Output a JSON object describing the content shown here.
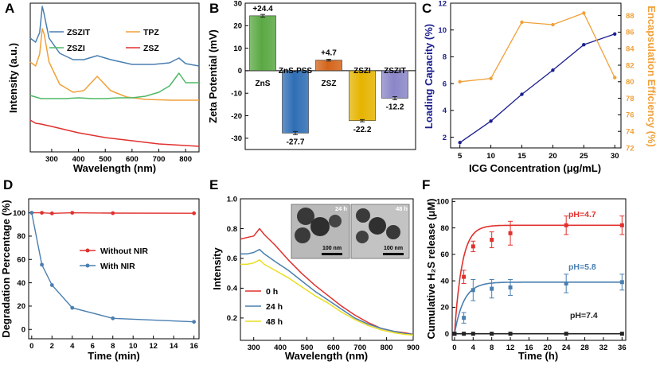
{
  "colors": {
    "blue": "#4a7fb0",
    "orange": "#f0a13a",
    "green": "#4fb866",
    "red": "#e0312e",
    "black": "#222222",
    "yellow": "#eadf22",
    "navy": "#1b1f8f"
  },
  "panels": {
    "A": {
      "letter": "A"
    },
    "B": {
      "letter": "B"
    },
    "C": {
      "letter": "C"
    },
    "D": {
      "letter": "D"
    },
    "E": {
      "letter": "E"
    },
    "F": {
      "letter": "F"
    }
  },
  "chart_data": [
    {
      "id": "A",
      "type": "line",
      "title": "",
      "xlabel": "Wavelength (nm)",
      "ylabel": "Intensity (a.u.)",
      "xlim": [
        220,
        850
      ],
      "xticks": [
        300,
        400,
        500,
        600,
        700,
        800
      ],
      "legend": [
        "ZSZIT",
        "TPZ",
        "ZSZI",
        "ZSZ"
      ],
      "series": [
        {
          "name": "ZSZIT",
          "color": "blue",
          "offset": 0.83,
          "points": [
            [
              220,
              0.55
            ],
            [
              240,
              0.5
            ],
            [
              255,
              0.62
            ],
            [
              265,
              0.95
            ],
            [
              272,
              0.85
            ],
            [
              290,
              0.55
            ],
            [
              330,
              0.36
            ],
            [
              380,
              0.28
            ],
            [
              420,
              0.28
            ],
            [
              470,
              0.33
            ],
            [
              520,
              0.28
            ],
            [
              600,
              0.22
            ],
            [
              680,
              0.22
            ],
            [
              740,
              0.24
            ],
            [
              775,
              0.3
            ],
            [
              800,
              0.23
            ],
            [
              850,
              0.2
            ]
          ]
        },
        {
          "name": "TPZ",
          "color": "orange",
          "offset": 0.58,
          "points": [
            [
              220,
              0.5
            ],
            [
              240,
              0.45
            ],
            [
              255,
              0.6
            ],
            [
              265,
              0.92
            ],
            [
              272,
              0.85
            ],
            [
              290,
              0.5
            ],
            [
              330,
              0.22
            ],
            [
              380,
              0.12
            ],
            [
              420,
              0.14
            ],
            [
              470,
              0.32
            ],
            [
              520,
              0.14
            ],
            [
              580,
              0.06
            ],
            [
              650,
              0.03
            ],
            [
              750,
              0.02
            ],
            [
              850,
              0.02
            ]
          ]
        },
        {
          "name": "ZSZI",
          "color": "green",
          "offset": 0.32,
          "points": [
            [
              220,
              0.34
            ],
            [
              260,
              0.3
            ],
            [
              300,
              0.3
            ],
            [
              350,
              0.3
            ],
            [
              400,
              0.31
            ],
            [
              450,
              0.3
            ],
            [
              500,
              0.3
            ],
            [
              550,
              0.31
            ],
            [
              600,
              0.31
            ],
            [
              650,
              0.33
            ],
            [
              700,
              0.38
            ],
            [
              740,
              0.46
            ],
            [
              775,
              0.62
            ],
            [
              800,
              0.5
            ],
            [
              820,
              0.5
            ],
            [
              850,
              0.5
            ]
          ]
        },
        {
          "name": "ZSZ",
          "color": "red",
          "offset": 0.0,
          "points": [
            [
              220,
              0.35
            ],
            [
              240,
              0.31
            ],
            [
              260,
              0.3
            ],
            [
              300,
              0.27
            ],
            [
              350,
              0.23
            ],
            [
              400,
              0.19
            ],
            [
              450,
              0.16
            ],
            [
              500,
              0.13
            ],
            [
              550,
              0.11
            ],
            [
              600,
              0.09
            ],
            [
              650,
              0.07
            ],
            [
              700,
              0.05
            ],
            [
              750,
              0.04
            ],
            [
              800,
              0.03
            ],
            [
              850,
              0.02
            ]
          ]
        }
      ]
    },
    {
      "id": "B",
      "type": "bar",
      "xlabel": "",
      "ylabel": "Zeta Potential (mV)",
      "ylim": [
        -35,
        30
      ],
      "yticks": [
        -30,
        -20,
        -10,
        0,
        10,
        20,
        30
      ],
      "categories": [
        "ZnS",
        "ZnS-PSS",
        "ZSZ",
        "ZSZI",
        "ZSZIT"
      ],
      "values": [
        24.4,
        -27.7,
        4.7,
        -22.2,
        -12.2
      ],
      "errors": [
        0.6,
        0.7,
        0.4,
        0.5,
        0.7
      ],
      "value_labels": [
        "+24.4",
        "-27.7",
        "+4.7",
        "-22.2",
        "-12.2"
      ],
      "bar_colors": [
        "#5aa843",
        "#2f6eb5",
        "#d4641a",
        "#e6b400",
        "#8a86c8"
      ]
    },
    {
      "id": "C",
      "type": "line",
      "xlabel": "ICG Concentration (μg/mL)",
      "ylabel_left": "Loading Capacity (%)",
      "ylabel_right": "Encapsulation Efficiency (%)",
      "x": [
        5,
        10,
        15,
        20,
        25,
        30
      ],
      "xlim": [
        3.5,
        31
      ],
      "xticks": [
        5,
        10,
        15,
        20,
        25,
        30
      ],
      "ylim_left": [
        1.2,
        12
      ],
      "yticks_left": [
        2,
        4,
        6,
        8,
        10,
        12
      ],
      "ylim_right": [
        72,
        89.5
      ],
      "yticks_right": [
        72,
        74,
        76,
        78,
        80,
        82,
        84,
        86,
        88
      ],
      "series": [
        {
          "name": "Loading Capacity",
          "axis": "left",
          "color": "navy",
          "values": [
            1.6,
            3.2,
            5.2,
            7.0,
            8.9,
            9.7
          ]
        },
        {
          "name": "Encapsulation Efficiency",
          "axis": "right",
          "color": "orange",
          "values": [
            80.0,
            80.4,
            87.2,
            86.9,
            88.3,
            80.5
          ]
        }
      ]
    },
    {
      "id": "D",
      "type": "line",
      "xlabel": "Time (min)",
      "ylabel": "Degradation Percentage (%)",
      "x": [
        0,
        1,
        2,
        4,
        8,
        16
      ],
      "xlim": [
        -0.3,
        16.5
      ],
      "xticks": [
        0,
        2,
        4,
        6,
        8,
        10,
        12,
        14,
        16
      ],
      "ylim": [
        -8,
        112
      ],
      "yticks": [
        0,
        20,
        40,
        60,
        80,
        100
      ],
      "legend": [
        "Without NIR",
        "With NIR"
      ],
      "series": [
        {
          "name": "Without NIR",
          "color": "red",
          "values": [
            100,
            100,
            99.5,
            100,
            99.7,
            99.6
          ]
        },
        {
          "name": "With NIR",
          "color": "blue",
          "values": [
            100,
            55.5,
            38,
            18.5,
            9.5,
            6.5
          ]
        }
      ]
    },
    {
      "id": "E",
      "type": "line",
      "xlabel": "Wavelength (nm)",
      "ylabel": "Intensity",
      "xlim": [
        250,
        900
      ],
      "xticks": [
        300,
        400,
        500,
        600,
        700,
        800,
        900
      ],
      "ylim": [
        0.05,
        1.0
      ],
      "yticks": [
        0.2,
        0.4,
        0.6,
        0.8,
        1.0
      ],
      "legend": [
        "0 h",
        "24 h",
        "48 h"
      ],
      "inset_labels": [
        "24 h",
        "48 h"
      ],
      "scale_bar_label": "100 nm",
      "series": [
        {
          "name": "0 h",
          "color": "red",
          "points": [
            [
              250,
              0.73
            ],
            [
              275,
              0.74
            ],
            [
              300,
              0.75
            ],
            [
              322,
              0.8
            ],
            [
              340,
              0.76
            ],
            [
              380,
              0.69
            ],
            [
              430,
              0.59
            ],
            [
              480,
              0.5
            ],
            [
              530,
              0.42
            ],
            [
              580,
              0.35
            ],
            [
              630,
              0.28
            ],
            [
              680,
              0.22
            ],
            [
              730,
              0.17
            ],
            [
              780,
              0.13
            ],
            [
              830,
              0.11
            ],
            [
              870,
              0.1
            ],
            [
              900,
              0.09
            ]
          ]
        },
        {
          "name": "24 h",
          "color": "blue",
          "points": [
            [
              250,
              0.63
            ],
            [
              275,
              0.63
            ],
            [
              300,
              0.64
            ],
            [
              322,
              0.66
            ],
            [
              340,
              0.63
            ],
            [
              380,
              0.58
            ],
            [
              430,
              0.52
            ],
            [
              480,
              0.45
            ],
            [
              530,
              0.38
            ],
            [
              580,
              0.32
            ],
            [
              630,
              0.26
            ],
            [
              680,
              0.2
            ],
            [
              730,
              0.16
            ],
            [
              780,
              0.13
            ],
            [
              830,
              0.11
            ],
            [
              870,
              0.095
            ],
            [
              900,
              0.09
            ]
          ]
        },
        {
          "name": "48 h",
          "color": "yellow",
          "points": [
            [
              250,
              0.56
            ],
            [
              275,
              0.56
            ],
            [
              300,
              0.57
            ],
            [
              322,
              0.59
            ],
            [
              340,
              0.56
            ],
            [
              380,
              0.52
            ],
            [
              430,
              0.47
            ],
            [
              480,
              0.41
            ],
            [
              530,
              0.35
            ],
            [
              580,
              0.3
            ],
            [
              630,
              0.24
            ],
            [
              680,
              0.19
            ],
            [
              730,
              0.15
            ],
            [
              780,
              0.12
            ],
            [
              830,
              0.1
            ],
            [
              870,
              0.09
            ],
            [
              900,
              0.085
            ]
          ]
        }
      ]
    },
    {
      "id": "F",
      "type": "scatter",
      "xlabel": "Time (h)",
      "ylabel": "Cumulative H₂S release (μM)",
      "xlim": [
        -0.5,
        36.8
      ],
      "xticks": [
        0,
        4,
        8,
        12,
        16,
        20,
        24,
        28,
        32,
        36
      ],
      "ylim": [
        -5,
        102
      ],
      "yticks": [
        0,
        20,
        40,
        60,
        80,
        100
      ],
      "series": [
        {
          "name": "pH=4.7",
          "color": "red",
          "x": [
            0,
            2,
            4,
            8,
            12,
            24,
            36
          ],
          "values": [
            0,
            43,
            66,
            71,
            76,
            82,
            82
          ],
          "errors": [
            0,
            5,
            4,
            6,
            9,
            7,
            7
          ],
          "fit_max": 82,
          "fit_k": 0.62
        },
        {
          "name": "pH=5.8",
          "color": "blue",
          "x": [
            0,
            2,
            4,
            8,
            12,
            24,
            36
          ],
          "values": [
            0,
            12,
            33,
            34,
            35,
            38,
            39
          ],
          "errors": [
            0,
            4,
            8,
            7,
            6,
            7,
            6
          ],
          "fit_max": 39,
          "fit_k": 0.5
        },
        {
          "name": "pH=7.4",
          "color": "black",
          "x": [
            0,
            2,
            4,
            8,
            12,
            24,
            36
          ],
          "values": [
            0,
            0,
            0,
            0,
            0,
            0,
            0
          ],
          "errors": [
            0,
            0,
            0,
            0,
            0,
            0,
            0
          ],
          "fit_max": 0,
          "fit_k": 0.5
        }
      ]
    }
  ]
}
